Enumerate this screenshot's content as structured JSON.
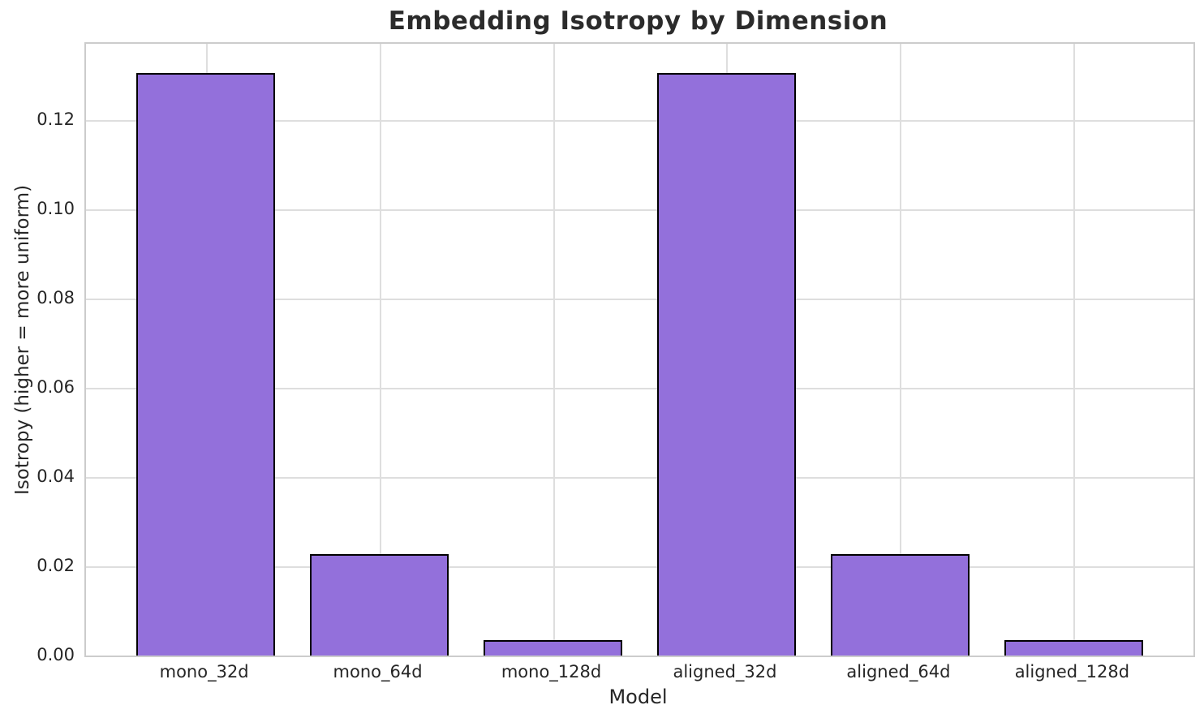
{
  "chart_data": {
    "type": "bar",
    "title": "Embedding Isotropy by Dimension",
    "xlabel": "Model",
    "ylabel": "Isotropy (higher = more uniform)",
    "categories": [
      "mono_32d",
      "mono_64d",
      "mono_128d",
      "aligned_32d",
      "aligned_64d",
      "aligned_128d"
    ],
    "values": [
      0.1305,
      0.0228,
      0.0035,
      0.1305,
      0.0228,
      0.0035
    ],
    "ylim": [
      0,
      0.137
    ],
    "yticks": [
      0.0,
      0.02,
      0.04,
      0.06,
      0.08,
      0.1,
      0.12
    ],
    "ytick_labels": [
      "0.00",
      "0.02",
      "0.04",
      "0.06",
      "0.08",
      "0.10",
      "0.12"
    ],
    "bar_width_fraction": 0.8,
    "grid": true,
    "legend_position": "none",
    "colors": {
      "bar_fill": "#9370DB",
      "bar_edge": "#000000",
      "gridline": "#dedede",
      "spine": "#cccccc",
      "text": "#262626",
      "title_text": "#2b2b2b",
      "background": "#ffffff"
    }
  }
}
